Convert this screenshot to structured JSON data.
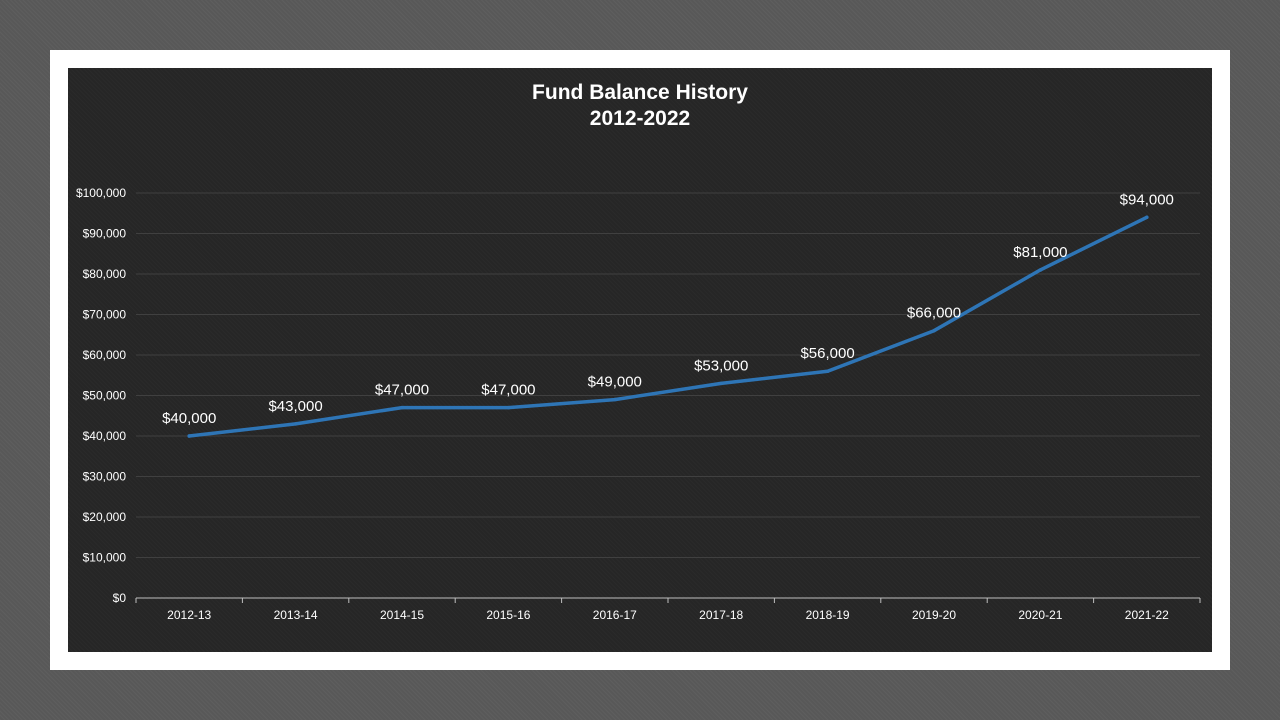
{
  "chart_data": {
    "type": "line",
    "title_line1": "Fund Balance History",
    "title_line2": "2012-2022",
    "categories": [
      "2012-13",
      "2013-14",
      "2014-15",
      "2015-16",
      "2016-17",
      "2017-18",
      "2018-19",
      "2019-20",
      "2020-21",
      "2021-22"
    ],
    "series": [
      {
        "values": [
          40000,
          43000,
          47000,
          47000,
          49000,
          53000,
          56000,
          66000,
          81000,
          94000
        ],
        "labels": [
          "$40,000",
          "$43,000",
          "$47,000",
          "$47,000",
          "$49,000",
          "$53,000",
          "$56,000",
          "$66,000",
          "$81,000",
          "$94,000"
        ],
        "color": "#2e75b6"
      }
    ],
    "ylim": [
      0,
      100000
    ],
    "yticks": [
      0,
      10000,
      20000,
      30000,
      40000,
      50000,
      60000,
      70000,
      80000,
      90000,
      100000
    ],
    "ytick_labels": [
      "$0",
      "$10,000",
      "$20,000",
      "$30,000",
      "$40,000",
      "$50,000",
      "$60,000",
      "$70,000",
      "$80,000",
      "$90,000",
      "$100,000"
    ],
    "grid": true,
    "legend": "none",
    "colors": {
      "background": "#262626",
      "gridline": "#404040",
      "axis": "#bfbfbf",
      "text": "#ffffff"
    }
  }
}
